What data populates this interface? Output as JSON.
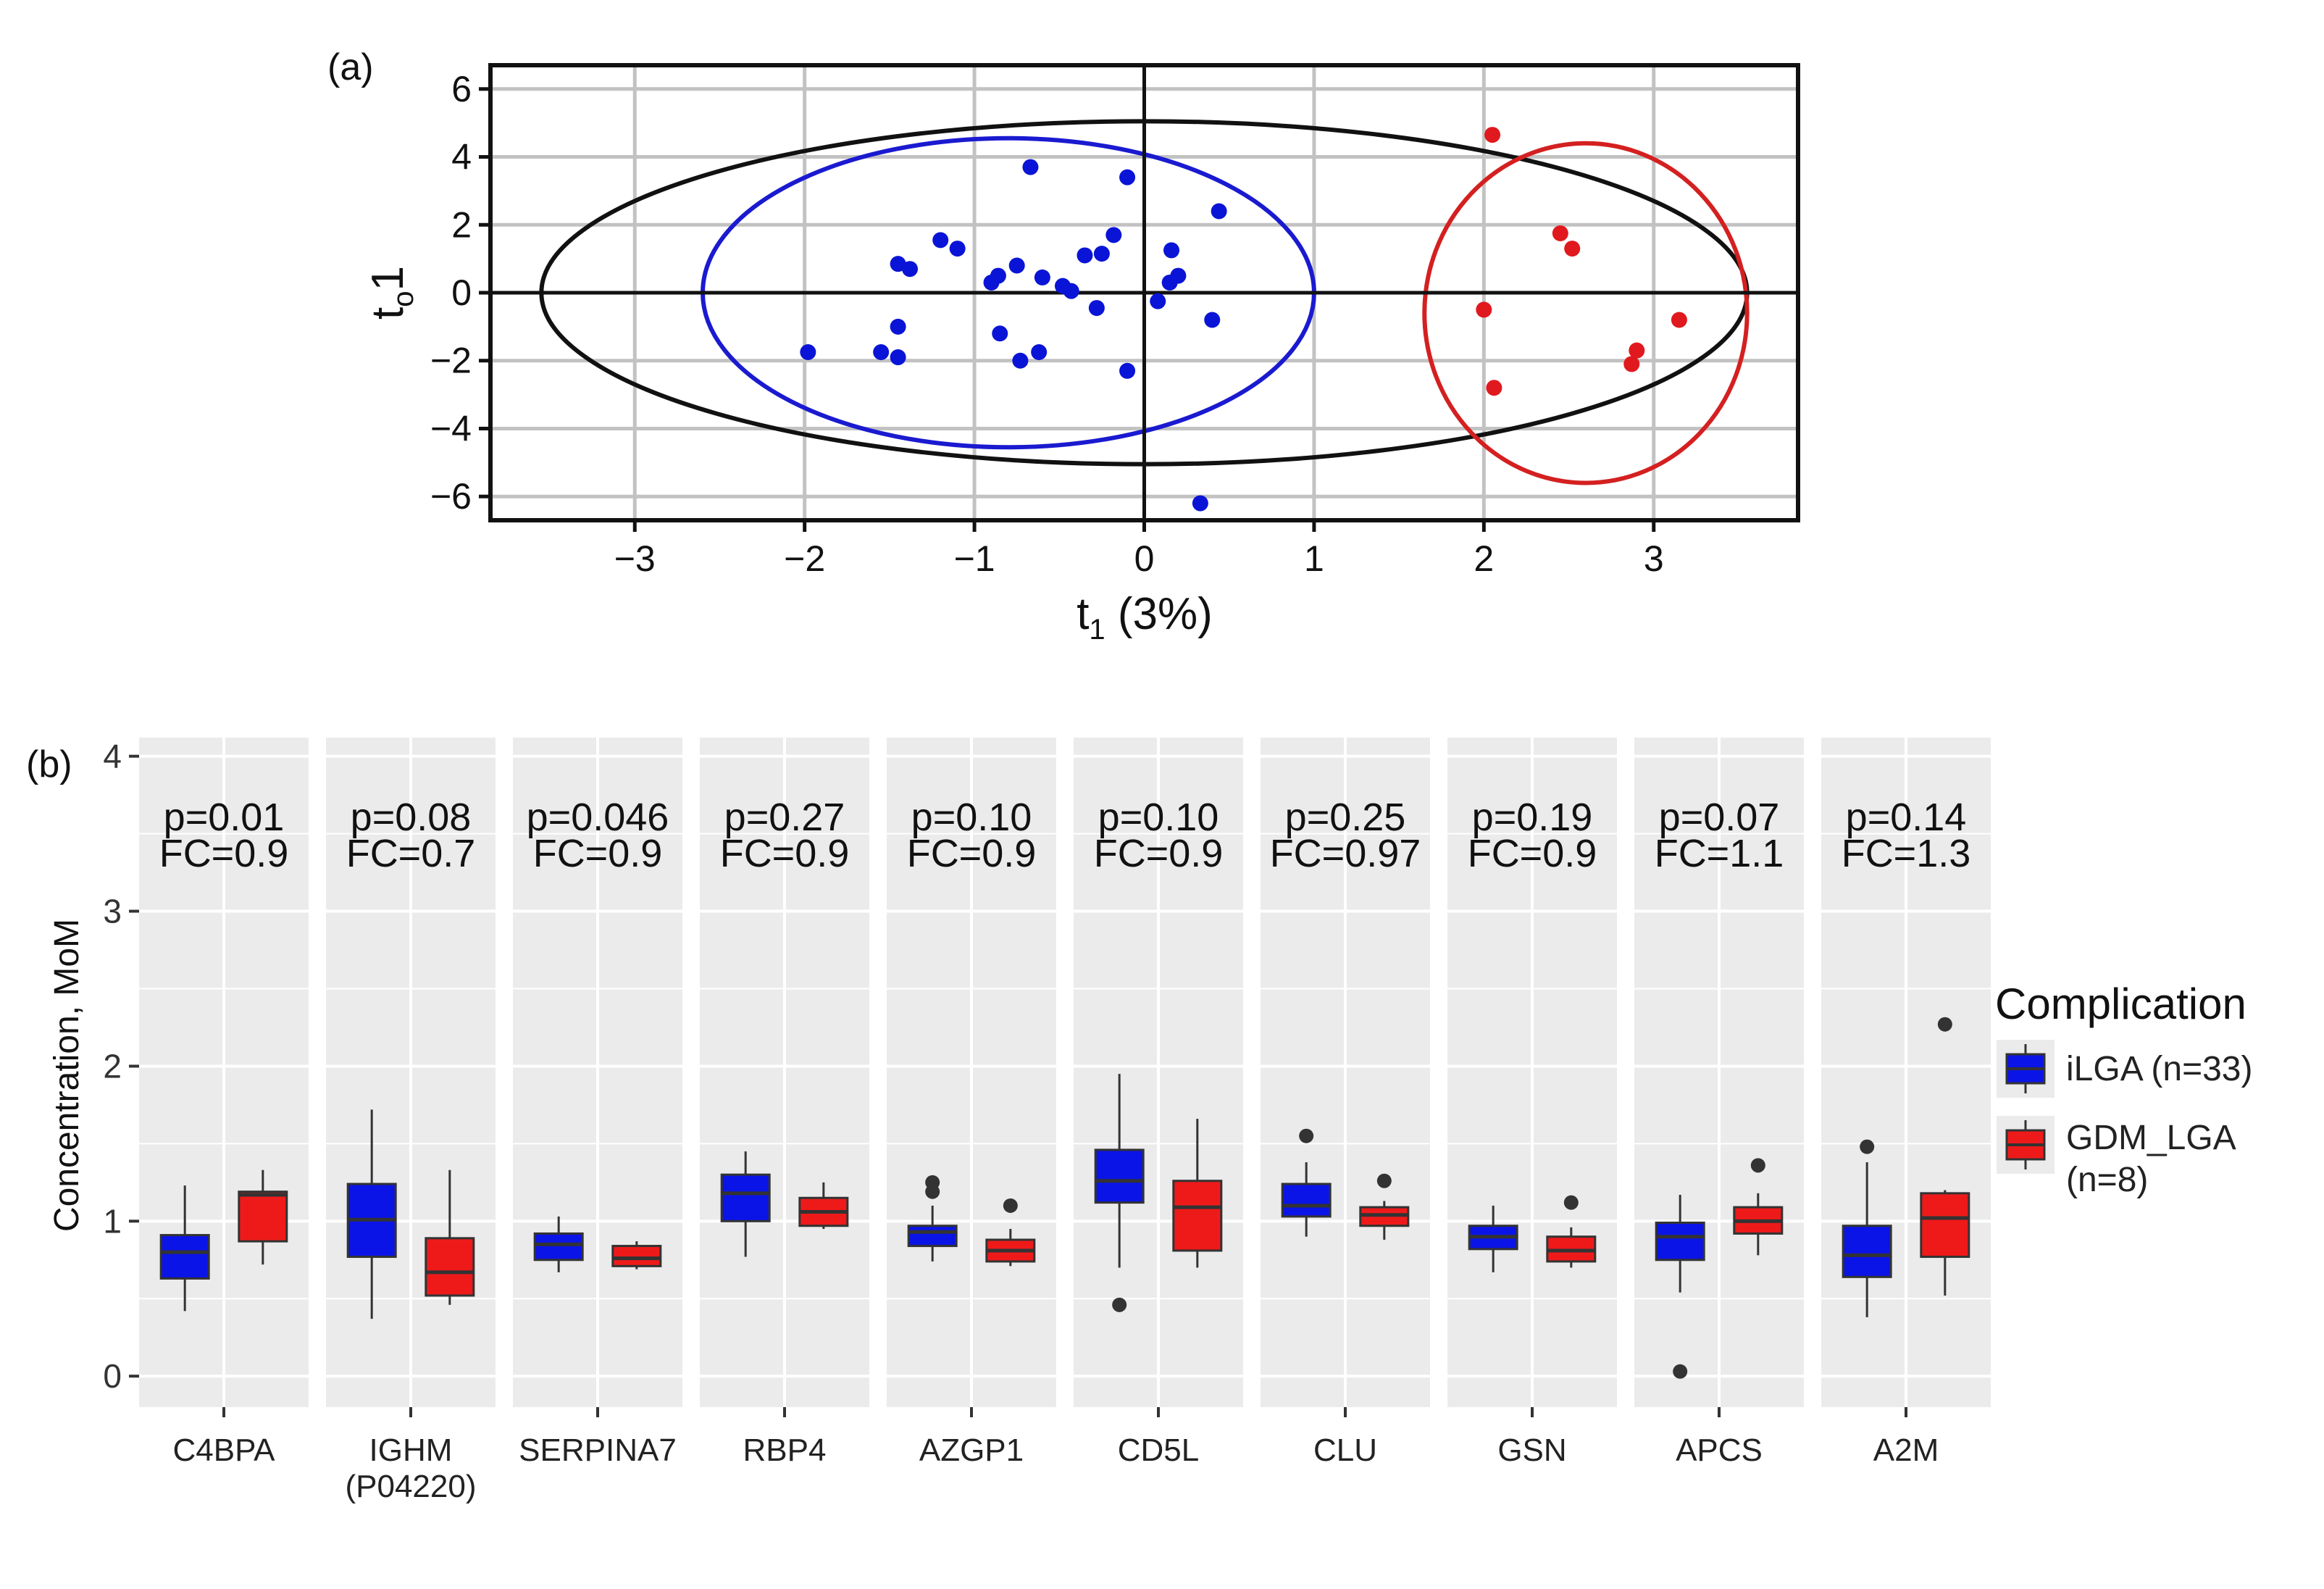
{
  "panel_a_label": "(a)",
  "panel_b_label": "(b)",
  "chart_data": [
    {
      "type": "scatter",
      "panel": "(a)",
      "xlabel_main": "t",
      "xlabel_sub": "1",
      "xlabel_rest": " (3%)",
      "ylabel_main": "t",
      "ylabel_sub": "o",
      "ylabel_rest": "1",
      "xlim": [
        -3.85,
        3.85
      ],
      "ylim": [
        -6.7,
        6.7
      ],
      "xticks": [
        -3,
        -2,
        -1,
        0,
        1,
        2,
        3
      ],
      "yticks": [
        -6,
        -4,
        -2,
        0,
        2,
        4,
        6
      ],
      "grid": true,
      "colors": {
        "group1": "#0a14d6",
        "group2": "#e0191e",
        "ellipse_total": "#111111"
      },
      "ellipses": [
        {
          "group": "total",
          "cx": 0,
          "cy": 0,
          "rx": 3.55,
          "ry": 5.05,
          "color": "#111111"
        },
        {
          "group": "group1",
          "cx": -0.8,
          "cy": 0,
          "rx": 1.8,
          "ry": 4.55,
          "color": "#1a1ad0"
        },
        {
          "group": "group2",
          "cx": 2.6,
          "cy": -0.6,
          "rx": 0.95,
          "ry": 5.0,
          "color": "#d42020"
        }
      ],
      "series": [
        {
          "color": "#0a14d6",
          "points": [
            [
              -0.67,
              3.7
            ],
            [
              -0.1,
              3.4
            ],
            [
              0.44,
              2.4
            ],
            [
              -0.18,
              1.7
            ],
            [
              -1.2,
              1.55
            ],
            [
              -1.1,
              1.3
            ],
            [
              0.16,
              1.25
            ],
            [
              -0.25,
              1.15
            ],
            [
              -0.35,
              1.1
            ],
            [
              -1.45,
              0.85
            ],
            [
              -1.38,
              0.7
            ],
            [
              -0.75,
              0.8
            ],
            [
              -0.86,
              0.5
            ],
            [
              -0.9,
              0.3
            ],
            [
              -0.6,
              0.45
            ],
            [
              -0.48,
              0.2
            ],
            [
              -0.43,
              0.05
            ],
            [
              0.2,
              0.5
            ],
            [
              0.15,
              0.3
            ],
            [
              0.08,
              -0.25
            ],
            [
              -0.28,
              -0.45
            ],
            [
              0.4,
              -0.8
            ],
            [
              -1.45,
              -1.0
            ],
            [
              -0.85,
              -1.2
            ],
            [
              -1.98,
              -1.75
            ],
            [
              -1.55,
              -1.75
            ],
            [
              -1.45,
              -1.9
            ],
            [
              -0.62,
              -1.75
            ],
            [
              -0.73,
              -2.0
            ],
            [
              -0.1,
              -2.3
            ],
            [
              0.33,
              -6.2
            ]
          ]
        },
        {
          "color": "#e0191e",
          "points": [
            [
              2.05,
              4.65
            ],
            [
              2.45,
              1.75
            ],
            [
              2.52,
              1.3
            ],
            [
              2.0,
              -0.5
            ],
            [
              3.15,
              -0.8
            ],
            [
              2.9,
              -1.7
            ],
            [
              2.87,
              -2.1
            ],
            [
              2.06,
              -2.8
            ]
          ]
        }
      ]
    },
    {
      "type": "box",
      "panel": "(b)",
      "ylabel": "Concentration, MoM",
      "ylim": [
        -0.2,
        4.12
      ],
      "yticks": [
        0,
        1,
        2,
        3,
        4
      ],
      "grid": true,
      "legend": {
        "title": "Complication",
        "position": "right",
        "entries": [
          {
            "lines": [
              "iLGA (n=33)"
            ],
            "color": "#0a14e6"
          },
          {
            "lines": [
              "GDM_LGA",
              "(n=8)"
            ],
            "color": "#ee1a1a"
          }
        ]
      },
      "facets": [
        {
          "name_lines": [
            "C4BPA"
          ],
          "p": "p=0.01",
          "fc": "FC=0.9",
          "boxes": [
            {
              "lo": 0.42,
              "q1": 0.63,
              "med": 0.8,
              "q3": 0.91,
              "hi": 1.23,
              "outliers": []
            },
            {
              "lo": 0.72,
              "q1": 0.87,
              "med": 1.17,
              "q3": 1.19,
              "hi": 1.33,
              "outliers": []
            }
          ]
        },
        {
          "name_lines": [
            "IGHM",
            "(P04220)"
          ],
          "p": "p=0.08",
          "fc": "FC=0.7",
          "boxes": [
            {
              "lo": 0.37,
              "q1": 0.77,
              "med": 1.01,
              "q3": 1.24,
              "hi": 1.72,
              "outliers": []
            },
            {
              "lo": 0.46,
              "q1": 0.52,
              "med": 0.67,
              "q3": 0.89,
              "hi": 1.33,
              "outliers": []
            }
          ]
        },
        {
          "name_lines": [
            "SERPINA7"
          ],
          "p": "p=0.046",
          "fc": "FC=0.9",
          "boxes": [
            {
              "lo": 0.67,
              "q1": 0.75,
              "med": 0.85,
              "q3": 0.92,
              "hi": 1.03,
              "outliers": []
            },
            {
              "lo": 0.69,
              "q1": 0.71,
              "med": 0.76,
              "q3": 0.84,
              "hi": 0.87,
              "outliers": []
            }
          ]
        },
        {
          "name_lines": [
            "RBP4"
          ],
          "p": "p=0.27",
          "fc": "FC=0.9",
          "boxes": [
            {
              "lo": 0.77,
              "q1": 1.0,
              "med": 1.18,
              "q3": 1.3,
              "hi": 1.45,
              "outliers": []
            },
            {
              "lo": 0.95,
              "q1": 0.97,
              "med": 1.06,
              "q3": 1.15,
              "hi": 1.25,
              "outliers": []
            }
          ]
        },
        {
          "name_lines": [
            "AZGP1"
          ],
          "p": "p=0.10",
          "fc": "FC=0.9",
          "boxes": [
            {
              "lo": 0.74,
              "q1": 0.84,
              "med": 0.93,
              "q3": 0.97,
              "hi": 1.1,
              "outliers": [
                1.25,
                1.19
              ]
            },
            {
              "lo": 0.71,
              "q1": 0.74,
              "med": 0.81,
              "q3": 0.88,
              "hi": 0.95,
              "outliers": [
                1.1
              ]
            }
          ]
        },
        {
          "name_lines": [
            "CD5L"
          ],
          "p": "p=0.10",
          "fc": "FC=0.9",
          "boxes": [
            {
              "lo": 0.7,
              "q1": 1.12,
              "med": 1.26,
              "q3": 1.46,
              "hi": 1.95,
              "outliers": [
                0.46
              ]
            },
            {
              "lo": 0.7,
              "q1": 0.81,
              "med": 1.09,
              "q3": 1.26,
              "hi": 1.66,
              "outliers": []
            }
          ]
        },
        {
          "name_lines": [
            "CLU"
          ],
          "p": "p=0.25",
          "fc": "FC=0.97",
          "boxes": [
            {
              "lo": 0.9,
              "q1": 1.03,
              "med": 1.1,
              "q3": 1.24,
              "hi": 1.38,
              "outliers": [
                1.55
              ]
            },
            {
              "lo": 0.88,
              "q1": 0.97,
              "med": 1.04,
              "q3": 1.09,
              "hi": 1.13,
              "outliers": [
                1.26
              ]
            }
          ]
        },
        {
          "name_lines": [
            "GSN"
          ],
          "p": "p=0.19",
          "fc": "FC=0.9",
          "boxes": [
            {
              "lo": 0.67,
              "q1": 0.82,
              "med": 0.9,
              "q3": 0.97,
              "hi": 1.1,
              "outliers": []
            },
            {
              "lo": 0.7,
              "q1": 0.74,
              "med": 0.81,
              "q3": 0.9,
              "hi": 0.96,
              "outliers": [
                1.12
              ]
            }
          ]
        },
        {
          "name_lines": [
            "APCS"
          ],
          "p": "p=0.07",
          "fc": "FC=1.1",
          "boxes": [
            {
              "lo": 0.54,
              "q1": 0.75,
              "med": 0.9,
              "q3": 0.99,
              "hi": 1.17,
              "outliers": [
                0.03
              ]
            },
            {
              "lo": 0.78,
              "q1": 0.92,
              "med": 1.0,
              "q3": 1.09,
              "hi": 1.18,
              "outliers": [
                1.36
              ]
            }
          ]
        },
        {
          "name_lines": [
            "A2M"
          ],
          "p": "p=0.14",
          "fc": "FC=1.3",
          "boxes": [
            {
              "lo": 0.38,
              "q1": 0.64,
              "med": 0.78,
              "q3": 0.97,
              "hi": 1.38,
              "outliers": [
                1.48
              ]
            },
            {
              "lo": 0.52,
              "q1": 0.77,
              "med": 1.02,
              "q3": 1.18,
              "hi": 1.2,
              "outliers": [
                2.27
              ]
            }
          ]
        }
      ]
    }
  ]
}
